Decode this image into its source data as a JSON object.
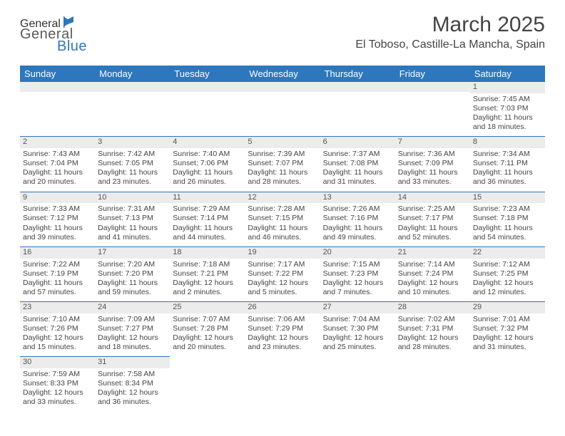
{
  "brand": {
    "part1": "General",
    "part2": "Blue",
    "icon_color": "#2e77bc"
  },
  "title": "March 2025",
  "location": "El Toboso, Castille-La Mancha, Spain",
  "colors": {
    "header_bg": "#2e77bc",
    "header_fg": "#ffffff",
    "daynum_bg": "#ececec",
    "rule": "#2e77bc"
  },
  "weekdays": [
    "Sunday",
    "Monday",
    "Tuesday",
    "Wednesday",
    "Thursday",
    "Friday",
    "Saturday"
  ],
  "first_weekday_index": 6,
  "days": [
    {
      "n": 1,
      "sr": "7:45 AM",
      "ss": "7:03 PM",
      "dl": "11 hours and 18 minutes."
    },
    {
      "n": 2,
      "sr": "7:43 AM",
      "ss": "7:04 PM",
      "dl": "11 hours and 20 minutes."
    },
    {
      "n": 3,
      "sr": "7:42 AM",
      "ss": "7:05 PM",
      "dl": "11 hours and 23 minutes."
    },
    {
      "n": 4,
      "sr": "7:40 AM",
      "ss": "7:06 PM",
      "dl": "11 hours and 26 minutes."
    },
    {
      "n": 5,
      "sr": "7:39 AM",
      "ss": "7:07 PM",
      "dl": "11 hours and 28 minutes."
    },
    {
      "n": 6,
      "sr": "7:37 AM",
      "ss": "7:08 PM",
      "dl": "11 hours and 31 minutes."
    },
    {
      "n": 7,
      "sr": "7:36 AM",
      "ss": "7:09 PM",
      "dl": "11 hours and 33 minutes."
    },
    {
      "n": 8,
      "sr": "7:34 AM",
      "ss": "7:11 PM",
      "dl": "11 hours and 36 minutes."
    },
    {
      "n": 9,
      "sr": "7:33 AM",
      "ss": "7:12 PM",
      "dl": "11 hours and 39 minutes."
    },
    {
      "n": 10,
      "sr": "7:31 AM",
      "ss": "7:13 PM",
      "dl": "11 hours and 41 minutes."
    },
    {
      "n": 11,
      "sr": "7:29 AM",
      "ss": "7:14 PM",
      "dl": "11 hours and 44 minutes."
    },
    {
      "n": 12,
      "sr": "7:28 AM",
      "ss": "7:15 PM",
      "dl": "11 hours and 46 minutes."
    },
    {
      "n": 13,
      "sr": "7:26 AM",
      "ss": "7:16 PM",
      "dl": "11 hours and 49 minutes."
    },
    {
      "n": 14,
      "sr": "7:25 AM",
      "ss": "7:17 PM",
      "dl": "11 hours and 52 minutes."
    },
    {
      "n": 15,
      "sr": "7:23 AM",
      "ss": "7:18 PM",
      "dl": "11 hours and 54 minutes."
    },
    {
      "n": 16,
      "sr": "7:22 AM",
      "ss": "7:19 PM",
      "dl": "11 hours and 57 minutes."
    },
    {
      "n": 17,
      "sr": "7:20 AM",
      "ss": "7:20 PM",
      "dl": "11 hours and 59 minutes."
    },
    {
      "n": 18,
      "sr": "7:18 AM",
      "ss": "7:21 PM",
      "dl": "12 hours and 2 minutes."
    },
    {
      "n": 19,
      "sr": "7:17 AM",
      "ss": "7:22 PM",
      "dl": "12 hours and 5 minutes."
    },
    {
      "n": 20,
      "sr": "7:15 AM",
      "ss": "7:23 PM",
      "dl": "12 hours and 7 minutes."
    },
    {
      "n": 21,
      "sr": "7:14 AM",
      "ss": "7:24 PM",
      "dl": "12 hours and 10 minutes."
    },
    {
      "n": 22,
      "sr": "7:12 AM",
      "ss": "7:25 PM",
      "dl": "12 hours and 12 minutes."
    },
    {
      "n": 23,
      "sr": "7:10 AM",
      "ss": "7:26 PM",
      "dl": "12 hours and 15 minutes."
    },
    {
      "n": 24,
      "sr": "7:09 AM",
      "ss": "7:27 PM",
      "dl": "12 hours and 18 minutes."
    },
    {
      "n": 25,
      "sr": "7:07 AM",
      "ss": "7:28 PM",
      "dl": "12 hours and 20 minutes."
    },
    {
      "n": 26,
      "sr": "7:06 AM",
      "ss": "7:29 PM",
      "dl": "12 hours and 23 minutes."
    },
    {
      "n": 27,
      "sr": "7:04 AM",
      "ss": "7:30 PM",
      "dl": "12 hours and 25 minutes."
    },
    {
      "n": 28,
      "sr": "7:02 AM",
      "ss": "7:31 PM",
      "dl": "12 hours and 28 minutes."
    },
    {
      "n": 29,
      "sr": "7:01 AM",
      "ss": "7:32 PM",
      "dl": "12 hours and 31 minutes."
    },
    {
      "n": 30,
      "sr": "7:59 AM",
      "ss": "8:33 PM",
      "dl": "12 hours and 33 minutes."
    },
    {
      "n": 31,
      "sr": "7:58 AM",
      "ss": "8:34 PM",
      "dl": "12 hours and 36 minutes."
    }
  ],
  "labels": {
    "sunrise": "Sunrise:",
    "sunset": "Sunset:",
    "daylight": "Daylight:"
  }
}
